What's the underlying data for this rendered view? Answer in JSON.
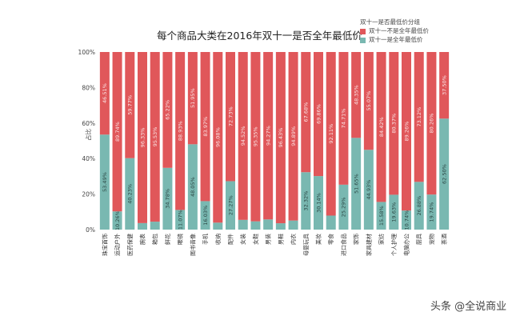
{
  "chart_data": {
    "type": "bar",
    "stacked": true,
    "title": "每个商品大类在2016年双十一是否全年最低价",
    "ylabel": "占比",
    "xlabel": "",
    "ylim": [
      0,
      100
    ],
    "yticks": [
      "0%",
      "20%",
      "40%",
      "60%",
      "80%",
      "100%"
    ],
    "legend": {
      "title": "双十一是否最低价分组",
      "position": "top-right"
    },
    "categories": [
      "珠宝首饰",
      "运动户外",
      "医药保健",
      "腕表",
      "箱包",
      "鲜花",
      "眼镜",
      "图书音像",
      "手机",
      "收纳",
      "配件",
      "女装",
      "女鞋",
      "男装",
      "男鞋",
      "内衣",
      "母婴玩具",
      "美妆",
      "零食",
      "进口食品",
      "家饰",
      "家具建材",
      "家纺",
      "个人护理",
      "电脑办公",
      "厨具",
      "宠物",
      "茶酒"
    ],
    "series": [
      {
        "name": "双十一是全年最低价",
        "color": "#79b8b1",
        "values": [
          53.49,
          10.26,
          40.23,
          3.67,
          4.47,
          34.78,
          11.07,
          48.05,
          16.03,
          3.92,
          27.27,
          5.48,
          4.65,
          5.73,
          3.57,
          5.11,
          32.32,
          30.14,
          7.89,
          25.29,
          51.65,
          44.93,
          15.58,
          19.63,
          10.74,
          26.88,
          19.74,
          62.5
        ]
      },
      {
        "name": "双十一不是全年最低价",
        "color": "#e0575a",
        "values": [
          46.51,
          89.74,
          59.77,
          96.33,
          95.53,
          65.22,
          88.93,
          51.95,
          83.97,
          96.08,
          72.73,
          94.52,
          95.35,
          94.27,
          96.43,
          94.89,
          67.68,
          69.86,
          92.11,
          74.71,
          48.35,
          55.07,
          84.42,
          80.37,
          89.26,
          73.12,
          80.26,
          37.5
        ]
      }
    ]
  },
  "watermark": "头条 @全说商业"
}
